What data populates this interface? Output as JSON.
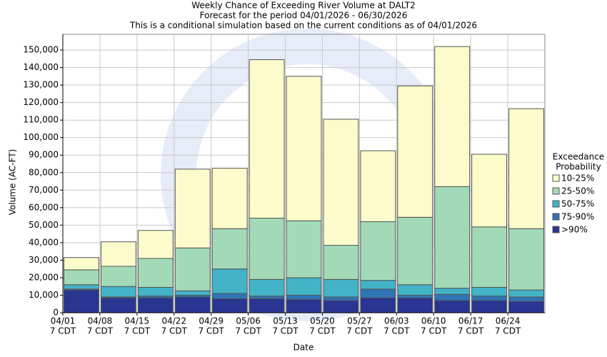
{
  "chart_data": {
    "type": "stacked_bar",
    "title": "Weekly Chance of Exceeding River Volume at DALT2",
    "subtitle": "Forecast for the period 04/01/2026 - 06/30/2026",
    "subtitle2": "This is a conditional simulation based on the current conditions as of 04/01/2026",
    "x_label": "Date",
    "y_label": "Volume (AC-FT)",
    "categories": [
      "04/01",
      "04/08",
      "04/15",
      "04/22",
      "04/29",
      "05/06",
      "05/13",
      "05/20",
      "05/27",
      "06/03",
      "06/10",
      "06/17",
      "06/24"
    ],
    "category_sublabels": [
      "7 CDT",
      "7 CDT",
      "7 CDT",
      "7 CDT",
      "7 CDT",
      "7 CDT",
      "7 CDT",
      "7 CDT",
      "7 CDT",
      "7 CDT",
      "7 CDT",
      "7 CDT",
      "7 CDT"
    ],
    "legend_title": [
      "Exceedance",
      "Probability"
    ],
    "series": [
      {
        "name": ">90%",
        "color": "#283591",
        "values": [
          13000,
          8500,
          8500,
          9000,
          8000,
          8000,
          7500,
          7000,
          8500,
          8500,
          7000,
          7000,
          6500
        ]
      },
      {
        "name": "75-90%",
        "color": "#2f74b5",
        "values": [
          500,
          500,
          1000,
          1000,
          3000,
          1500,
          2500,
          2000,
          5000,
          1500,
          3500,
          2500,
          2500
        ]
      },
      {
        "name": "50-75%",
        "color": "#43b3c8",
        "values": [
          2500,
          6000,
          5000,
          2500,
          14000,
          9500,
          10000,
          10000,
          5000,
          6000,
          3500,
          5000,
          4000
        ]
      },
      {
        "name": "25-50%",
        "color": "#a2dab7",
        "values": [
          8500,
          11500,
          16500,
          24500,
          23000,
          35000,
          32500,
          19500,
          33500,
          38500,
          58000,
          34500,
          35000
        ]
      },
      {
        "name": "10-25%",
        "color": "#fbfbcb",
        "values": [
          7000,
          14000,
          16000,
          45000,
          34500,
          90500,
          82500,
          72000,
          40500,
          75000,
          80000,
          41500,
          68500
        ]
      }
    ],
    "ylim": [
      0,
      159000
    ],
    "yticks": [
      0,
      {
        "value": 10000,
        "label": "10,000"
      },
      {
        "value": 20000,
        "label": "20,000"
      },
      {
        "value": 30000,
        "label": "30,000"
      },
      {
        "value": 40000,
        "label": "40,000"
      },
      {
        "value": 50000,
        "label": "50,000"
      },
      {
        "value": 60000,
        "label": "60,000"
      },
      {
        "value": 70000,
        "label": "70,000"
      },
      {
        "value": 80000,
        "label": "80,000"
      },
      {
        "value": 90000,
        "label": "90,000"
      },
      {
        "value": 100000,
        "label": "100,000"
      },
      {
        "value": 110000,
        "label": "110,000"
      },
      {
        "value": 120000,
        "label": "120,000"
      },
      {
        "value": 130000,
        "label": "130,000"
      },
      {
        "value": 140000,
        "label": "140,000"
      },
      {
        "value": 150000,
        "label": "150,000"
      }
    ],
    "grid": true,
    "legend_position": "right"
  }
}
